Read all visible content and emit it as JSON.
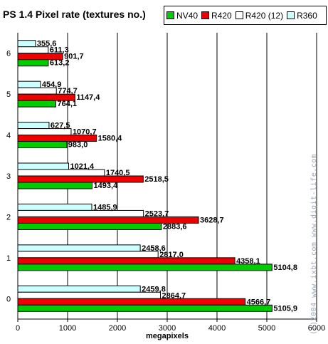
{
  "chart_data": {
    "type": "bar",
    "orientation": "horizontal",
    "title": "PS 1.4 Pixel rate (textures no.)",
    "xlabel": "megapixels",
    "ylabel": "",
    "xlim": [
      0,
      6000
    ],
    "xticks": [
      0,
      1000,
      2000,
      3000,
      4000,
      5000,
      6000
    ],
    "grid": "vertical",
    "legend_position": "top-right",
    "categories": [
      "0",
      "1",
      "2",
      "3",
      "4",
      "5",
      "6"
    ],
    "series": [
      {
        "name": "NV40",
        "color": "#00cc00",
        "values": [
          5105.9,
          5104.8,
          2883.6,
          1493.4,
          983.0,
          764.1,
          613.2
        ],
        "labels": [
          "5105,9",
          "5104,8",
          "2883,6",
          "1493,4",
          "983,0",
          "764,1",
          "613,2"
        ]
      },
      {
        "name": "R420",
        "color": "#ee0000",
        "values": [
          4566.7,
          4358.1,
          3628.7,
          2518.5,
          1580.4,
          1147.4,
          901.7
        ],
        "labels": [
          "4566,7",
          "4358,1",
          "3628,7",
          "2518,5",
          "1580,4",
          "1147,4",
          "901,7"
        ]
      },
      {
        "name": "R420 (12)",
        "color": "#ffffff",
        "values": [
          2864.7,
          2817.0,
          2523.7,
          1740.5,
          1070.7,
          774.7,
          611.3
        ],
        "labels": [
          "2864,7",
          "2817,0",
          "2523,7",
          "1740,5",
          "1070,7",
          "774,7",
          "611,3"
        ]
      },
      {
        "name": "R360",
        "color": "#ccffff",
        "values": [
          2459.8,
          2458.6,
          1485.9,
          1021.4,
          627.5,
          454.9,
          355.6
        ],
        "labels": [
          "2459,8",
          "2458,6",
          "1485,9",
          "1021,4",
          "627,5",
          "454,9",
          "355,6"
        ]
      }
    ]
  },
  "watermark": "(c)2004 www.ixbt.com www.digit-life.com"
}
